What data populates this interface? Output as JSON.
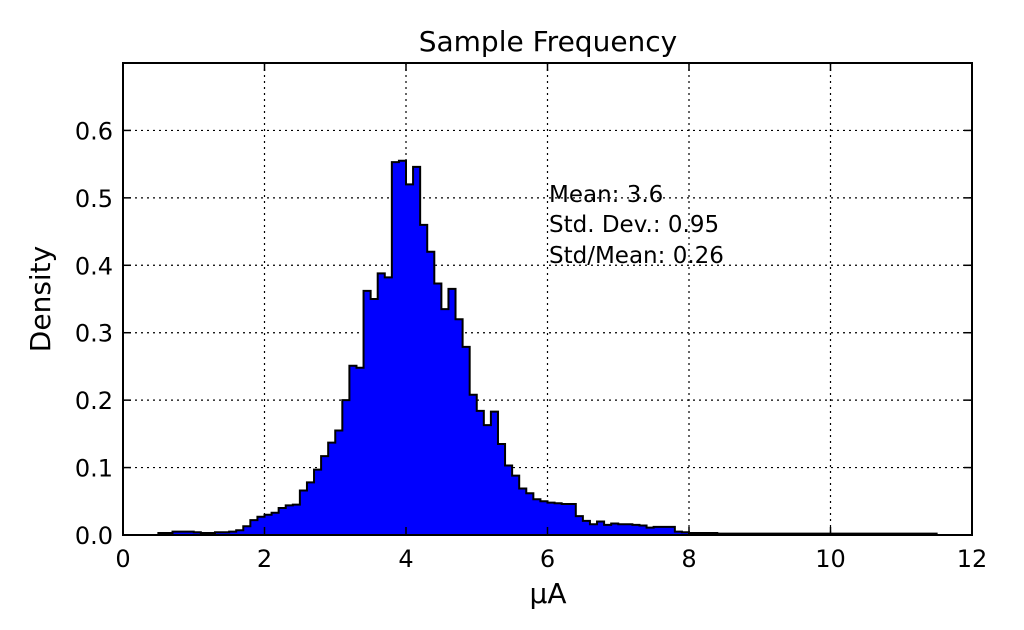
{
  "chart_data": {
    "type": "histogram",
    "title": "Sample Frequency",
    "xlabel": "μA",
    "ylabel": "Density",
    "xlim": [
      0,
      12
    ],
    "ylim": [
      0,
      0.7
    ],
    "xticks": [
      "0",
      "2",
      "4",
      "6",
      "8",
      "10",
      "12"
    ],
    "yticks": [
      "0.0",
      "0.1",
      "0.2",
      "0.3",
      "0.4",
      "0.5",
      "0.6"
    ],
    "grid": true,
    "bin_width": 0.1,
    "bin_start": 0.5,
    "values": [
      0.003,
      0.003,
      0.005,
      0.005,
      0.005,
      0.004,
      0.003,
      0.003,
      0.004,
      0.004,
      0.005,
      0.007,
      0.013,
      0.022,
      0.027,
      0.03,
      0.033,
      0.04,
      0.044,
      0.045,
      0.066,
      0.078,
      0.097,
      0.117,
      0.137,
      0.155,
      0.2,
      0.251,
      0.248,
      0.362,
      0.35,
      0.388,
      0.382,
      0.553,
      0.555,
      0.52,
      0.546,
      0.46,
      0.42,
      0.373,
      0.335,
      0.365,
      0.32,
      0.279,
      0.208,
      0.184,
      0.163,
      0.183,
      0.135,
      0.103,
      0.088,
      0.069,
      0.062,
      0.053,
      0.05,
      0.048,
      0.047,
      0.046,
      0.046,
      0.028,
      0.021,
      0.016,
      0.02,
      0.015,
      0.017,
      0.016,
      0.016,
      0.015,
      0.014,
      0.011,
      0.012,
      0.012,
      0.012,
      0.005,
      0.004,
      0.003,
      0.003,
      0.003,
      0.003,
      0.002,
      0.002,
      0.002,
      0.002,
      0.002,
      0.002,
      0.002,
      0.002,
      0.002,
      0.002,
      0.002,
      0.002,
      0.002,
      0.002,
      0.002,
      0.002,
      0.002,
      0.002,
      0.002,
      0.002,
      0.002,
      0.002,
      0.002,
      0.002,
      0.002,
      0.002,
      0.002,
      0.002,
      0.002,
      0.002,
      0.002
    ],
    "annotations": [
      "Mean: 3.6",
      "Std. Dev.: 0.95",
      "Std/Mean: 0.26"
    ],
    "fill_color": "#0000ff",
    "edge_color": "#000000"
  }
}
